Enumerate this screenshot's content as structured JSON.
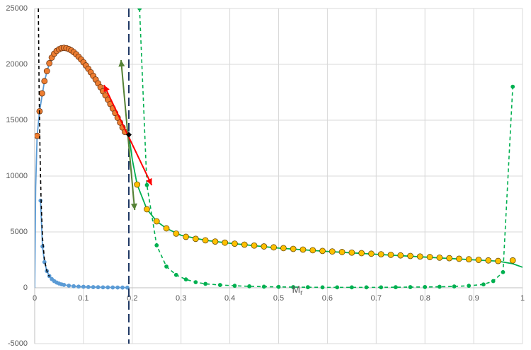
{
  "chart_data": {
    "type": "line",
    "xlabel": "M",
    "xlabel_sub": "r",
    "xlim": [
      0,
      1
    ],
    "ylim": [
      -5000,
      25000
    ],
    "xticks": [
      0,
      0.1,
      0.2,
      0.3,
      0.4,
      0.5,
      0.6,
      0.7,
      0.8,
      0.9,
      1
    ],
    "yticks": [
      -5000,
      0,
      5000,
      10000,
      15000,
      20000,
      25000
    ],
    "grid": true,
    "series": [
      {
        "color": "#5b9bd5",
        "style": "solid",
        "x": [
          0,
          0.002,
          0.005,
          0.01,
          0.02,
          0.03,
          0.05,
          0.06,
          0.08,
          0.1,
          0.12,
          0.14,
          0.16,
          0.18,
          0.193
        ],
        "values": [
          0,
          9000,
          13600,
          15800,
          18500,
          20100,
          21350,
          21480,
          21090,
          20180,
          18970,
          17590,
          16050,
          14350,
          13700
        ]
      },
      {
        "color": "#ed7d31",
        "edge": "#6b3410",
        "marker": 4,
        "x": [
          0.005,
          0.01,
          0.015,
          0.02,
          0.025,
          0.03,
          0.035,
          0.04,
          0.045,
          0.05,
          0.055,
          0.06,
          0.065,
          0.07,
          0.075,
          0.08,
          0.085,
          0.09,
          0.095,
          0.1,
          0.105,
          0.11,
          0.115,
          0.12,
          0.125,
          0.13,
          0.135,
          0.14,
          0.145,
          0.15,
          0.155,
          0.16,
          0.165,
          0.17,
          0.175,
          0.18,
          0.185
        ],
        "values": [
          13600,
          15800,
          17400,
          18500,
          19400,
          20100,
          20600,
          20950,
          21200,
          21350,
          21450,
          21480,
          21450,
          21370,
          21250,
          21090,
          20900,
          20680,
          20440,
          20180,
          19900,
          19600,
          19290,
          18970,
          18640,
          18300,
          17950,
          17590,
          17220,
          16840,
          16450,
          16050,
          15640,
          15220,
          14790,
          14350,
          13950
        ]
      },
      {
        "color": "#5b9bd5",
        "style": "solid",
        "marker": 2.5,
        "x": [
          0.012,
          0.016,
          0.02,
          0.025,
          0.03,
          0.035,
          0.04,
          0.045,
          0.05,
          0.055,
          0.06,
          0.07,
          0.08,
          0.09,
          0.1,
          0.11,
          0.12,
          0.13,
          0.14,
          0.15,
          0.16,
          0.17,
          0.18,
          0.19
        ],
        "values": [
          7800,
          3700,
          2300,
          1500,
          1050,
          780,
          600,
          470,
          380,
          310,
          260,
          190,
          140,
          110,
          90,
          70,
          60,
          50,
          40,
          35,
          30,
          25,
          20,
          15
        ]
      },
      {
        "color": "#000000",
        "style": "dashed",
        "x": [
          0.0075,
          0.009,
          0.011,
          0.013,
          0.016,
          0.02,
          0.025,
          0.03
        ],
        "values": [
          25000,
          18000,
          12000,
          8000,
          4500,
          2500,
          1500,
          1000
        ]
      },
      {
        "color": "#00b050",
        "style": "solid",
        "x": [
          0.193,
          0.2,
          0.21,
          0.23,
          0.25,
          0.27,
          0.3,
          0.35,
          0.4,
          0.5,
          0.6,
          0.7,
          0.8,
          0.9,
          0.95,
          0.98,
          1.0
        ],
        "values": [
          13700,
          11500,
          9240,
          7030,
          5950,
          5320,
          4700,
          4250,
          3990,
          3550,
          3250,
          3000,
          2750,
          2500,
          2380,
          2150,
          1840
        ]
      },
      {
        "color": "#ffc000",
        "edge": "#6b5000",
        "marker": 4,
        "x": [
          0.21,
          0.23,
          0.25,
          0.27,
          0.29,
          0.31,
          0.33,
          0.35,
          0.37,
          0.39,
          0.41,
          0.43,
          0.45,
          0.47,
          0.49,
          0.51,
          0.53,
          0.55,
          0.57,
          0.59,
          0.61,
          0.63,
          0.65,
          0.67,
          0.69,
          0.71,
          0.73,
          0.75,
          0.77,
          0.79,
          0.81,
          0.83,
          0.85,
          0.87,
          0.89,
          0.91,
          0.93,
          0.95,
          0.98
        ],
        "values": [
          9240,
          7030,
          5950,
          5320,
          4850,
          4560,
          4380,
          4250,
          4140,
          4040,
          3950,
          3860,
          3780,
          3700,
          3620,
          3550,
          3480,
          3420,
          3360,
          3300,
          3250,
          3200,
          3150,
          3100,
          3050,
          3000,
          2950,
          2900,
          2850,
          2800,
          2750,
          2700,
          2650,
          2600,
          2550,
          2500,
          2450,
          2400,
          2450
        ]
      },
      {
        "color": "#00b050",
        "style": "dashed",
        "marker": 2.5,
        "x": [
          0.215,
          0.23,
          0.25,
          0.27,
          0.29,
          0.31,
          0.33,
          0.35,
          0.38,
          0.41,
          0.44,
          0.47,
          0.5,
          0.53,
          0.56,
          0.59,
          0.62,
          0.65,
          0.68,
          0.71,
          0.74,
          0.77,
          0.8,
          0.83,
          0.86,
          0.89,
          0.92,
          0.94,
          0.96,
          0.98
        ],
        "values": [
          25000,
          9200,
          3800,
          1900,
          1150,
          750,
          500,
          350,
          250,
          180,
          130,
          100,
          80,
          60,
          50,
          40,
          40,
          40,
          40,
          40,
          50,
          60,
          70,
          90,
          120,
          180,
          300,
          600,
          1400,
          18000
        ]
      }
    ],
    "vline": {
      "x": 0.193,
      "color": "#1f3864"
    },
    "point": {
      "x": 0.193,
      "y": 13700,
      "color": "#000000"
    },
    "arrows": [
      {
        "x": [
          0.177,
          0.205
        ],
        "y": [
          20380,
          6960
        ],
        "color": "#548235"
      },
      {
        "x": [
          0.142,
          0.24
        ],
        "y": [
          18150,
          9180
        ],
        "color": "#ff0000"
      }
    ]
  }
}
